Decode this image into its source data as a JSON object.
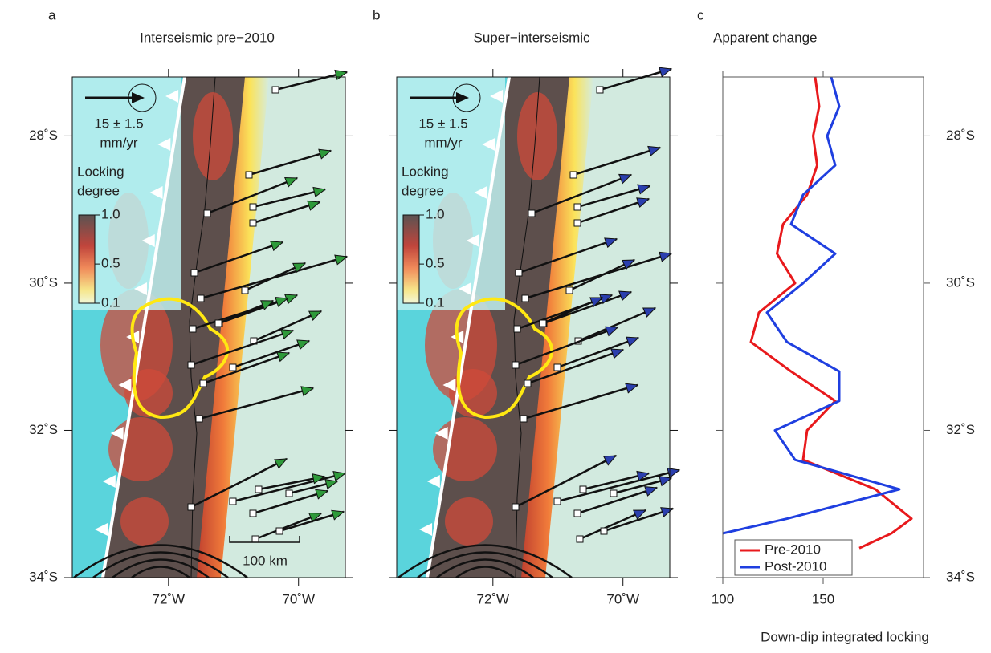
{
  "maps": [
    {
      "letter": "a",
      "title": "Interseismic pre−2010",
      "scale_arrow": [
        "15 ± 1.5",
        "mm/yr"
      ],
      "colorbar_title": [
        "Locking",
        "degree"
      ],
      "colorbar_ticks": [
        {
          "value": 1.0,
          "label": "1.0"
        },
        {
          "value": 0.5,
          "label": "0.5"
        },
        {
          "value": 0.1,
          "label": "0.1"
        }
      ],
      "scale_bar": "100 km",
      "arrow_color": "#2e9a3a"
    },
    {
      "letter": "b",
      "title": "Super−interseismic",
      "scale_arrow": [
        "15 ± 1.5",
        "mm/yr"
      ],
      "colorbar_title": [
        "Locking",
        "degree"
      ],
      "colorbar_ticks": [
        {
          "value": 1.0,
          "label": "1.0"
        },
        {
          "value": 0.5,
          "label": "0.5"
        },
        {
          "value": 0.1,
          "label": "0.1"
        }
      ],
      "arrow_color": "#2b3fae"
    }
  ],
  "map_axes": {
    "lonlim": [
      73.48,
      69.28
    ],
    "lon_ticks": [
      {
        "value": 72,
        "label": "72˚W"
      },
      {
        "value": 70,
        "label": "70˚W"
      }
    ],
    "latlim": [
      27.2,
      34
    ],
    "lat_ticks": [
      {
        "value": 28,
        "label": "28˚S"
      },
      {
        "value": 30,
        "label": "30˚S"
      },
      {
        "value": 32,
        "label": "32˚S"
      },
      {
        "value": 34,
        "label": "34˚S"
      }
    ]
  },
  "chart_data": {
    "type": "line",
    "letter": "c",
    "title": "Apparent change",
    "x_label": "Down-dip integrated locking",
    "latitudes": [
      27.2,
      27.6,
      28.0,
      28.4,
      28.8,
      29.2,
      29.6,
      30.0,
      30.4,
      30.8,
      31.2,
      31.6,
      32.0,
      32.4,
      32.8,
      33.2,
      33.4,
      33.6
    ],
    "series": [
      {
        "name": "Pre-2010",
        "color": "#e8191c",
        "values": [
          146,
          148,
          145,
          147,
          142,
          130,
          127,
          136,
          118,
          114,
          134,
          156,
          142,
          140,
          176,
          194,
          184,
          168
        ]
      },
      {
        "name": "Post-2010",
        "color": "#1f3fe0",
        "values": [
          154,
          158,
          152,
          156,
          140,
          134,
          156,
          140,
          122,
          132,
          158,
          158,
          126,
          136,
          188,
          132,
          100,
          null
        ]
      }
    ],
    "xlim": [
      100,
      200
    ],
    "xticks": [
      100,
      150
    ],
    "ylim": [
      27.2,
      34
    ],
    "yticks": [
      {
        "value": 28,
        "label": "28˚S"
      },
      {
        "value": 30,
        "label": "30˚S"
      },
      {
        "value": 32,
        "label": "32˚S"
      },
      {
        "value": 34,
        "label": "34˚S"
      }
    ],
    "legend": "lower-left"
  }
}
